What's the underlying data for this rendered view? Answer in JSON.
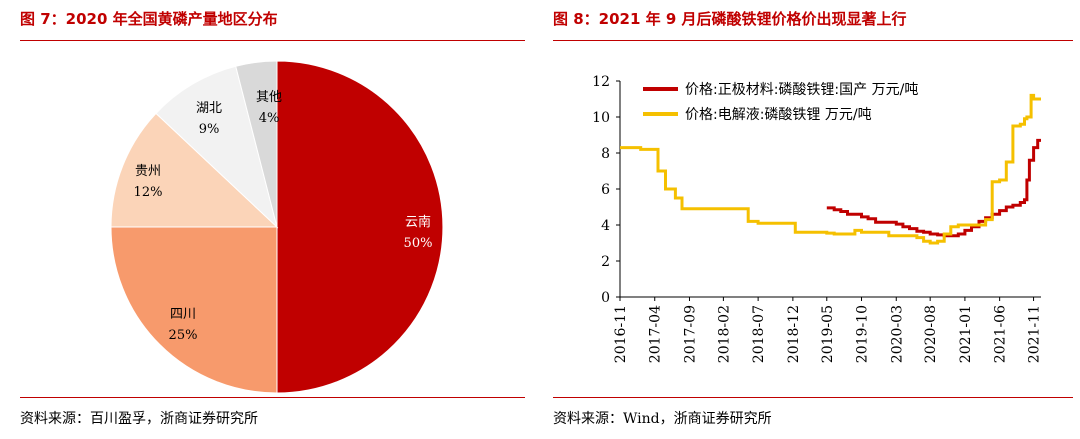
{
  "left": {
    "title": "图 7：2020 年全国黄磷产量地区分布",
    "source": "资料来源：百川盈孚，浙商证券研究所"
  },
  "right": {
    "title": "图 8：2021 年 9 月后磷酸铁锂价格价出现显著上行",
    "source": "资料来源：Wind，浙商证券研究所"
  },
  "chart_data": [
    {
      "type": "pie",
      "title": "2020 年全国黄磷产量地区分布",
      "slices": [
        {
          "label": "云南",
          "value": 50,
          "pct": "50%",
          "color": "#c00000"
        },
        {
          "label": "四川",
          "value": 25,
          "pct": "25%",
          "color": "#f79a6c"
        },
        {
          "label": "贵州",
          "value": 12,
          "pct": "12%",
          "color": "#fbd4b8"
        },
        {
          "label": "湖北",
          "value": 9,
          "pct": "9%",
          "color": "#f2f2f2"
        },
        {
          "label": "其他",
          "value": 4,
          "pct": "4%",
          "color": "#d9d9d9"
        }
      ]
    },
    {
      "type": "line",
      "title": "2021 年 9 月后磷酸铁锂价格价出现显著上行",
      "ylim": [
        0,
        12
      ],
      "yticks": [
        0,
        2,
        4,
        6,
        8,
        10,
        12
      ],
      "xlim": [
        2016.83,
        2021.92
      ],
      "xticks": [
        {
          "label": "2016-11",
          "t": 2016.83
        },
        {
          "label": "2017-04",
          "t": 2017.25
        },
        {
          "label": "2017-09",
          "t": 2017.67
        },
        {
          "label": "2018-02",
          "t": 2018.08
        },
        {
          "label": "2018-07",
          "t": 2018.5
        },
        {
          "label": "2018-12",
          "t": 2018.92
        },
        {
          "label": "2019-05",
          "t": 2019.33
        },
        {
          "label": "2019-10",
          "t": 2019.75
        },
        {
          "label": "2020-03",
          "t": 2020.17
        },
        {
          "label": "2020-08",
          "t": 2020.58
        },
        {
          "label": "2021-01",
          "t": 2021.0
        },
        {
          "label": "2021-06",
          "t": 2021.42
        },
        {
          "label": "2021-11",
          "t": 2021.83
        }
      ],
      "series": [
        {
          "name": "价格:正极材料:磷酸铁锂:国产 万元/吨",
          "color": "#c00000",
          "points": [
            [
              2019.33,
              4.95
            ],
            [
              2019.42,
              4.85
            ],
            [
              2019.5,
              4.75
            ],
            [
              2019.58,
              4.6
            ],
            [
              2019.75,
              4.45
            ],
            [
              2019.83,
              4.35
            ],
            [
              2019.92,
              4.15
            ],
            [
              2020.17,
              4.05
            ],
            [
              2020.25,
              3.9
            ],
            [
              2020.33,
              3.8
            ],
            [
              2020.42,
              3.65
            ],
            [
              2020.5,
              3.6
            ],
            [
              2020.58,
              3.5
            ],
            [
              2020.67,
              3.45
            ],
            [
              2020.75,
              3.4
            ],
            [
              2020.83,
              3.4
            ],
            [
              2020.92,
              3.5
            ],
            [
              2021.0,
              3.7
            ],
            [
              2021.08,
              3.9
            ],
            [
              2021.17,
              4.2
            ],
            [
              2021.25,
              4.4
            ],
            [
              2021.33,
              4.6
            ],
            [
              2021.42,
              4.8
            ],
            [
              2021.5,
              5.0
            ],
            [
              2021.58,
              5.1
            ],
            [
              2021.67,
              5.25
            ],
            [
              2021.72,
              5.4
            ],
            [
              2021.75,
              6.5
            ],
            [
              2021.78,
              7.6
            ],
            [
              2021.83,
              8.3
            ],
            [
              2021.88,
              8.7
            ],
            [
              2021.92,
              8.7
            ]
          ]
        },
        {
          "name": "价格:电解液:磷酸铁锂 万元/吨",
          "color": "#f5c000",
          "points": [
            [
              2016.83,
              8.3
            ],
            [
              2017.0,
              8.3
            ],
            [
              2017.08,
              8.2
            ],
            [
              2017.25,
              8.2
            ],
            [
              2017.29,
              7.0
            ],
            [
              2017.38,
              6.0
            ],
            [
              2017.5,
              5.5
            ],
            [
              2017.58,
              4.9
            ],
            [
              2018.33,
              4.9
            ],
            [
              2018.38,
              4.2
            ],
            [
              2018.5,
              4.1
            ],
            [
              2018.92,
              4.1
            ],
            [
              2018.95,
              3.6
            ],
            [
              2019.33,
              3.55
            ],
            [
              2019.42,
              3.5
            ],
            [
              2019.58,
              3.5
            ],
            [
              2019.67,
              3.7
            ],
            [
              2019.75,
              3.6
            ],
            [
              2020.0,
              3.6
            ],
            [
              2020.08,
              3.4
            ],
            [
              2020.42,
              3.3
            ],
            [
              2020.5,
              3.1
            ],
            [
              2020.58,
              3.0
            ],
            [
              2020.67,
              3.1
            ],
            [
              2020.75,
              3.5
            ],
            [
              2020.83,
              3.9
            ],
            [
              2020.92,
              4.0
            ],
            [
              2021.17,
              4.0
            ],
            [
              2021.25,
              4.3
            ],
            [
              2021.33,
              6.4
            ],
            [
              2021.42,
              6.5
            ],
            [
              2021.5,
              7.5
            ],
            [
              2021.58,
              9.5
            ],
            [
              2021.67,
              9.6
            ],
            [
              2021.72,
              9.9
            ],
            [
              2021.75,
              10.0
            ],
            [
              2021.8,
              11.2
            ],
            [
              2021.83,
              11.0
            ],
            [
              2021.92,
              11.0
            ]
          ]
        }
      ]
    }
  ]
}
